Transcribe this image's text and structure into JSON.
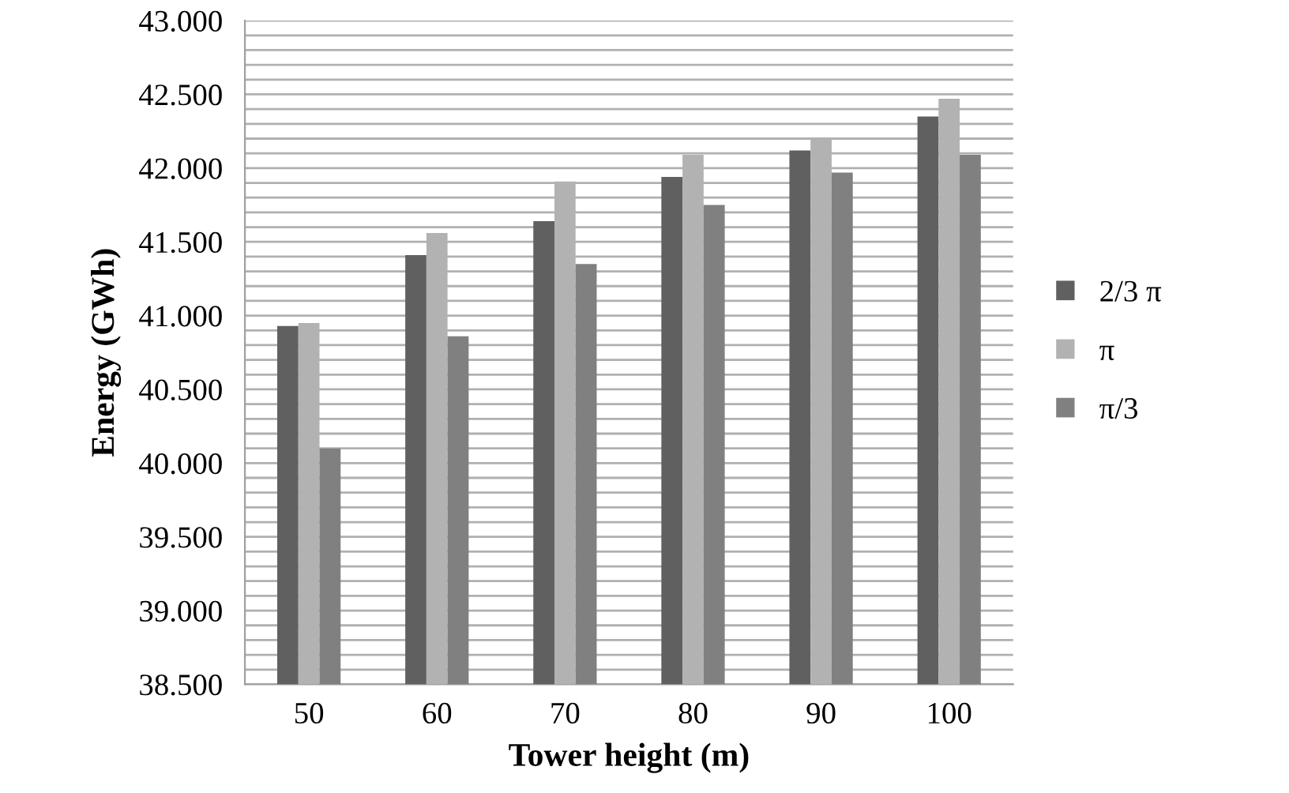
{
  "chart_data": {
    "type": "bar",
    "xlabel": "Tower height (m)",
    "ylabel": "Energy (GWh)",
    "categories": [
      "50",
      "60",
      "70",
      "80",
      "90",
      "100"
    ],
    "series": [
      {
        "name": "2/3 π",
        "color": "#606060",
        "values": [
          40930,
          41410,
          41640,
          41940,
          42120,
          42350
        ]
      },
      {
        "name": "π",
        "color": "#b2b2b2",
        "values": [
          40950,
          41560,
          41910,
          42090,
          42200,
          42470
        ]
      },
      {
        "name": "π/3",
        "color": "#808080",
        "values": [
          40100,
          40860,
          41350,
          41750,
          41970,
          42090
        ]
      }
    ],
    "ylim": [
      38500,
      43000
    ],
    "yticks": [
      {
        "value": 38500,
        "label": "38.500"
      },
      {
        "value": 38600,
        "label": null
      },
      {
        "value": 38700,
        "label": null
      },
      {
        "value": 38800,
        "label": null
      },
      {
        "value": 38900,
        "label": null
      },
      {
        "value": 39000,
        "label": "39.000"
      },
      {
        "value": 39100,
        "label": null
      },
      {
        "value": 39200,
        "label": null
      },
      {
        "value": 39300,
        "label": null
      },
      {
        "value": 39400,
        "label": null
      },
      {
        "value": 39500,
        "label": "39.500"
      },
      {
        "value": 39600,
        "label": null
      },
      {
        "value": 39700,
        "label": null
      },
      {
        "value": 39800,
        "label": null
      },
      {
        "value": 39900,
        "label": null
      },
      {
        "value": 40000,
        "label": "40.000"
      },
      {
        "value": 40100,
        "label": null
      },
      {
        "value": 40200,
        "label": null
      },
      {
        "value": 40300,
        "label": null
      },
      {
        "value": 40400,
        "label": null
      },
      {
        "value": 40500,
        "label": "40.500"
      },
      {
        "value": 40600,
        "label": null
      },
      {
        "value": 40700,
        "label": null
      },
      {
        "value": 40800,
        "label": null
      },
      {
        "value": 40900,
        "label": null
      },
      {
        "value": 41000,
        "label": "41.000"
      },
      {
        "value": 41100,
        "label": null
      },
      {
        "value": 41200,
        "label": null
      },
      {
        "value": 41300,
        "label": null
      },
      {
        "value": 41400,
        "label": null
      },
      {
        "value": 41500,
        "label": "41.500"
      },
      {
        "value": 41600,
        "label": null
      },
      {
        "value": 41700,
        "label": null
      },
      {
        "value": 41800,
        "label": null
      },
      {
        "value": 41900,
        "label": null
      },
      {
        "value": 42000,
        "label": "42.000"
      },
      {
        "value": 42100,
        "label": null
      },
      {
        "value": 42200,
        "label": null
      },
      {
        "value": 42300,
        "label": null
      },
      {
        "value": 42400,
        "label": null
      },
      {
        "value": 42500,
        "label": "42.500"
      },
      {
        "value": 42600,
        "label": null
      },
      {
        "value": 42700,
        "label": null
      },
      {
        "value": 42800,
        "label": null
      },
      {
        "value": 42900,
        "label": null
      },
      {
        "value": 43000,
        "label": "43.000"
      }
    ],
    "grid": "y",
    "legend": "right"
  }
}
